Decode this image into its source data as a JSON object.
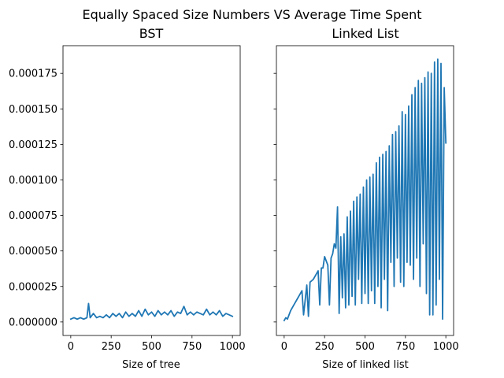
{
  "chart_data": {
    "type": "line",
    "title": "Equally Spaced Size Numbers VS Average Time Spent",
    "sharey": true,
    "ylim": [
      -9.5e-06,
      0.0001945
    ],
    "yticks": [
      0.0,
      2.5e-05,
      5e-05,
      7.5e-05,
      0.0001,
      0.000125,
      0.00015,
      0.000175
    ],
    "ytick_labels": [
      "0.000000",
      "0.000025",
      "0.000050",
      "0.000075",
      "0.000100",
      "0.000125",
      "0.000150",
      "0.000175"
    ],
    "color": "#1f77b4",
    "panels": [
      {
        "title": "BST",
        "xlabel": "Size of tree",
        "ylabel": "",
        "xlim": [
          -48,
          1048
        ],
        "xticks": [
          0,
          250,
          500,
          750,
          1000
        ],
        "xtick_labels": [
          "0",
          "250",
          "500",
          "750",
          "1000"
        ],
        "series": [
          {
            "x": [
              0,
              20,
              40,
              60,
              80,
              100,
              110,
              120,
              140,
              160,
              180,
              200,
              220,
              240,
              260,
              280,
              300,
              320,
              340,
              360,
              380,
              400,
              420,
              440,
              460,
              480,
              500,
              520,
              540,
              560,
              580,
              600,
              620,
              640,
              660,
              680,
              700,
              720,
              740,
              760,
              780,
              800,
              820,
              840,
              860,
              880,
              900,
              920,
              940,
              960,
              980,
              1000
            ],
            "y": [
              2e-06,
              3e-06,
              2e-06,
              3e-06,
              2e-06,
              3e-06,
              1.3e-05,
              3e-06,
              6e-06,
              3e-06,
              4e-06,
              3e-06,
              5e-06,
              3e-06,
              6e-06,
              4e-06,
              6e-06,
              3e-06,
              7e-06,
              4e-06,
              6e-06,
              4e-06,
              8e-06,
              4e-06,
              9e-06,
              5e-06,
              7e-06,
              4e-06,
              8e-06,
              5e-06,
              7e-06,
              5e-06,
              8e-06,
              4e-06,
              7e-06,
              6e-06,
              1.1e-05,
              5e-06,
              7e-06,
              5e-06,
              7e-06,
              6e-06,
              5e-06,
              9e-06,
              5e-06,
              7e-06,
              5e-06,
              8e-06,
              4e-06,
              6e-06,
              5e-06,
              4e-06
            ]
          }
        ]
      },
      {
        "title": "Linked List",
        "xlabel": "Size of linked list",
        "ylabel": "",
        "xlim": [
          -48,
          1048
        ],
        "xticks": [
          0,
          250,
          500,
          750,
          1000
        ],
        "xtick_labels": [
          "0",
          "250",
          "500",
          "750",
          "1000"
        ],
        "series": [
          {
            "x": [
              0,
              10,
              20,
              40,
              60,
              80,
              100,
              110,
              120,
              140,
              150,
              160,
              180,
              200,
              210,
              220,
              230,
              240,
              250,
              270,
              280,
              290,
              300,
              310,
              320,
              330,
              340,
              350,
              360,
              370,
              380,
              390,
              400,
              410,
              420,
              430,
              440,
              450,
              460,
              470,
              480,
              490,
              500,
              510,
              520,
              530,
              540,
              550,
              560,
              570,
              580,
              590,
              600,
              610,
              620,
              630,
              640,
              650,
              660,
              670,
              680,
              690,
              700,
              710,
              720,
              730,
              740,
              750,
              760,
              770,
              780,
              790,
              800,
              810,
              820,
              830,
              840,
              850,
              860,
              870,
              880,
              890,
              900,
              910,
              920,
              930,
              940,
              950,
              960,
              970,
              980,
              990,
              1000
            ],
            "y": [
              1e-06,
              3e-06,
              2e-06,
              8e-06,
              1.2e-05,
              1.6e-05,
              2e-05,
              2.2e-05,
              5e-06,
              2.6e-05,
              4e-06,
              2.8e-05,
              3e-05,
              3.4e-05,
              3.6e-05,
              1.2e-05,
              3.8e-05,
              3.8e-05,
              4.6e-05,
              4e-05,
              1.2e-05,
              4.5e-05,
              4.8e-05,
              5.5e-05,
              5.2e-05,
              8.1e-05,
              6e-06,
              6e-05,
              1.7e-05,
              6.2e-05,
              1e-05,
              7.4e-05,
              1.2e-05,
              7.8e-05,
              1.8e-05,
              8.5e-05,
              1.2e-05,
              8.8e-05,
              3e-05,
              9e-05,
              1.3e-05,
              9.5e-05,
              2e-05,
              0.0001,
              1.3e-05,
              0.000102,
              2.2e-05,
              0.000104,
              1.3e-05,
              0.000112,
              2.5e-05,
              0.000116,
              1e-05,
              0.000118,
              3e-05,
              0.00012,
              8e-06,
              0.000124,
              4.2e-05,
              0.000132,
              2.5e-05,
              0.000134,
              4.5e-05,
              0.000138,
              2.8e-05,
              0.000148,
              2.5e-05,
              0.000146,
              4.2e-05,
              0.000152,
              4e-05,
              0.00016,
              3e-05,
              0.000165,
              4.5e-05,
              0.00017,
              2.5e-05,
              0.000168,
              5.5e-05,
              0.000172,
              2e-05,
              0.000176,
              5e-06,
              0.000175,
              5e-06,
              0.000183,
              1.2e-05,
              0.000185,
              3e-05,
              0.000182,
              2e-06,
              0.000165,
              0.000126
            ]
          }
        ]
      }
    ]
  }
}
